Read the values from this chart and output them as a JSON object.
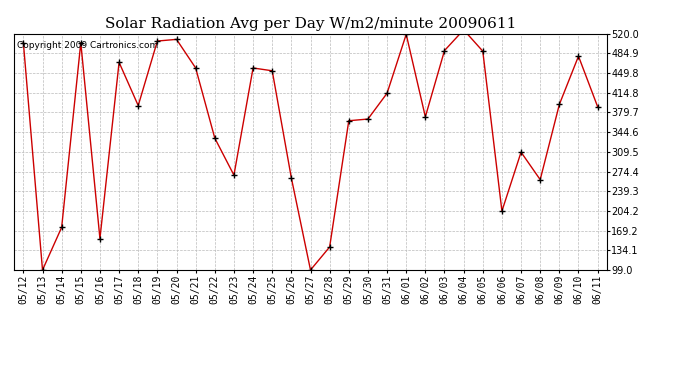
{
  "title": "Solar Radiation Avg per Day W/m2/minute 20090611",
  "copyright": "Copyright 2009 Cartronics.com",
  "x_labels": [
    "05/12",
    "05/13",
    "05/14",
    "05/15",
    "05/16",
    "05/17",
    "05/18",
    "05/19",
    "05/20",
    "05/21",
    "05/22",
    "05/23",
    "05/24",
    "05/25",
    "05/26",
    "05/27",
    "05/28",
    "05/29",
    "05/30",
    "05/31",
    "06/01",
    "06/02",
    "06/03",
    "06/04",
    "06/05",
    "06/06",
    "06/07",
    "06/08",
    "06/09",
    "06/10",
    "06/11"
  ],
  "y_values": [
    504,
    99,
    175,
    504,
    155,
    469,
    392,
    507,
    510,
    459,
    334,
    268,
    459,
    454,
    263,
    99,
    140,
    365,
    368,
    414,
    519,
    372,
    490,
    527,
    489,
    204,
    309,
    260,
    394,
    480,
    390
  ],
  "y_ticks": [
    99.0,
    134.1,
    169.2,
    204.2,
    239.3,
    274.4,
    309.5,
    344.6,
    379.7,
    414.8,
    449.8,
    484.9,
    520.0
  ],
  "line_color": "#cc0000",
  "marker": "+",
  "bg_color": "#ffffff",
  "grid_color": "#bbbbbb",
  "title_fontsize": 11,
  "copyright_fontsize": 6.5,
  "tick_fontsize": 7
}
